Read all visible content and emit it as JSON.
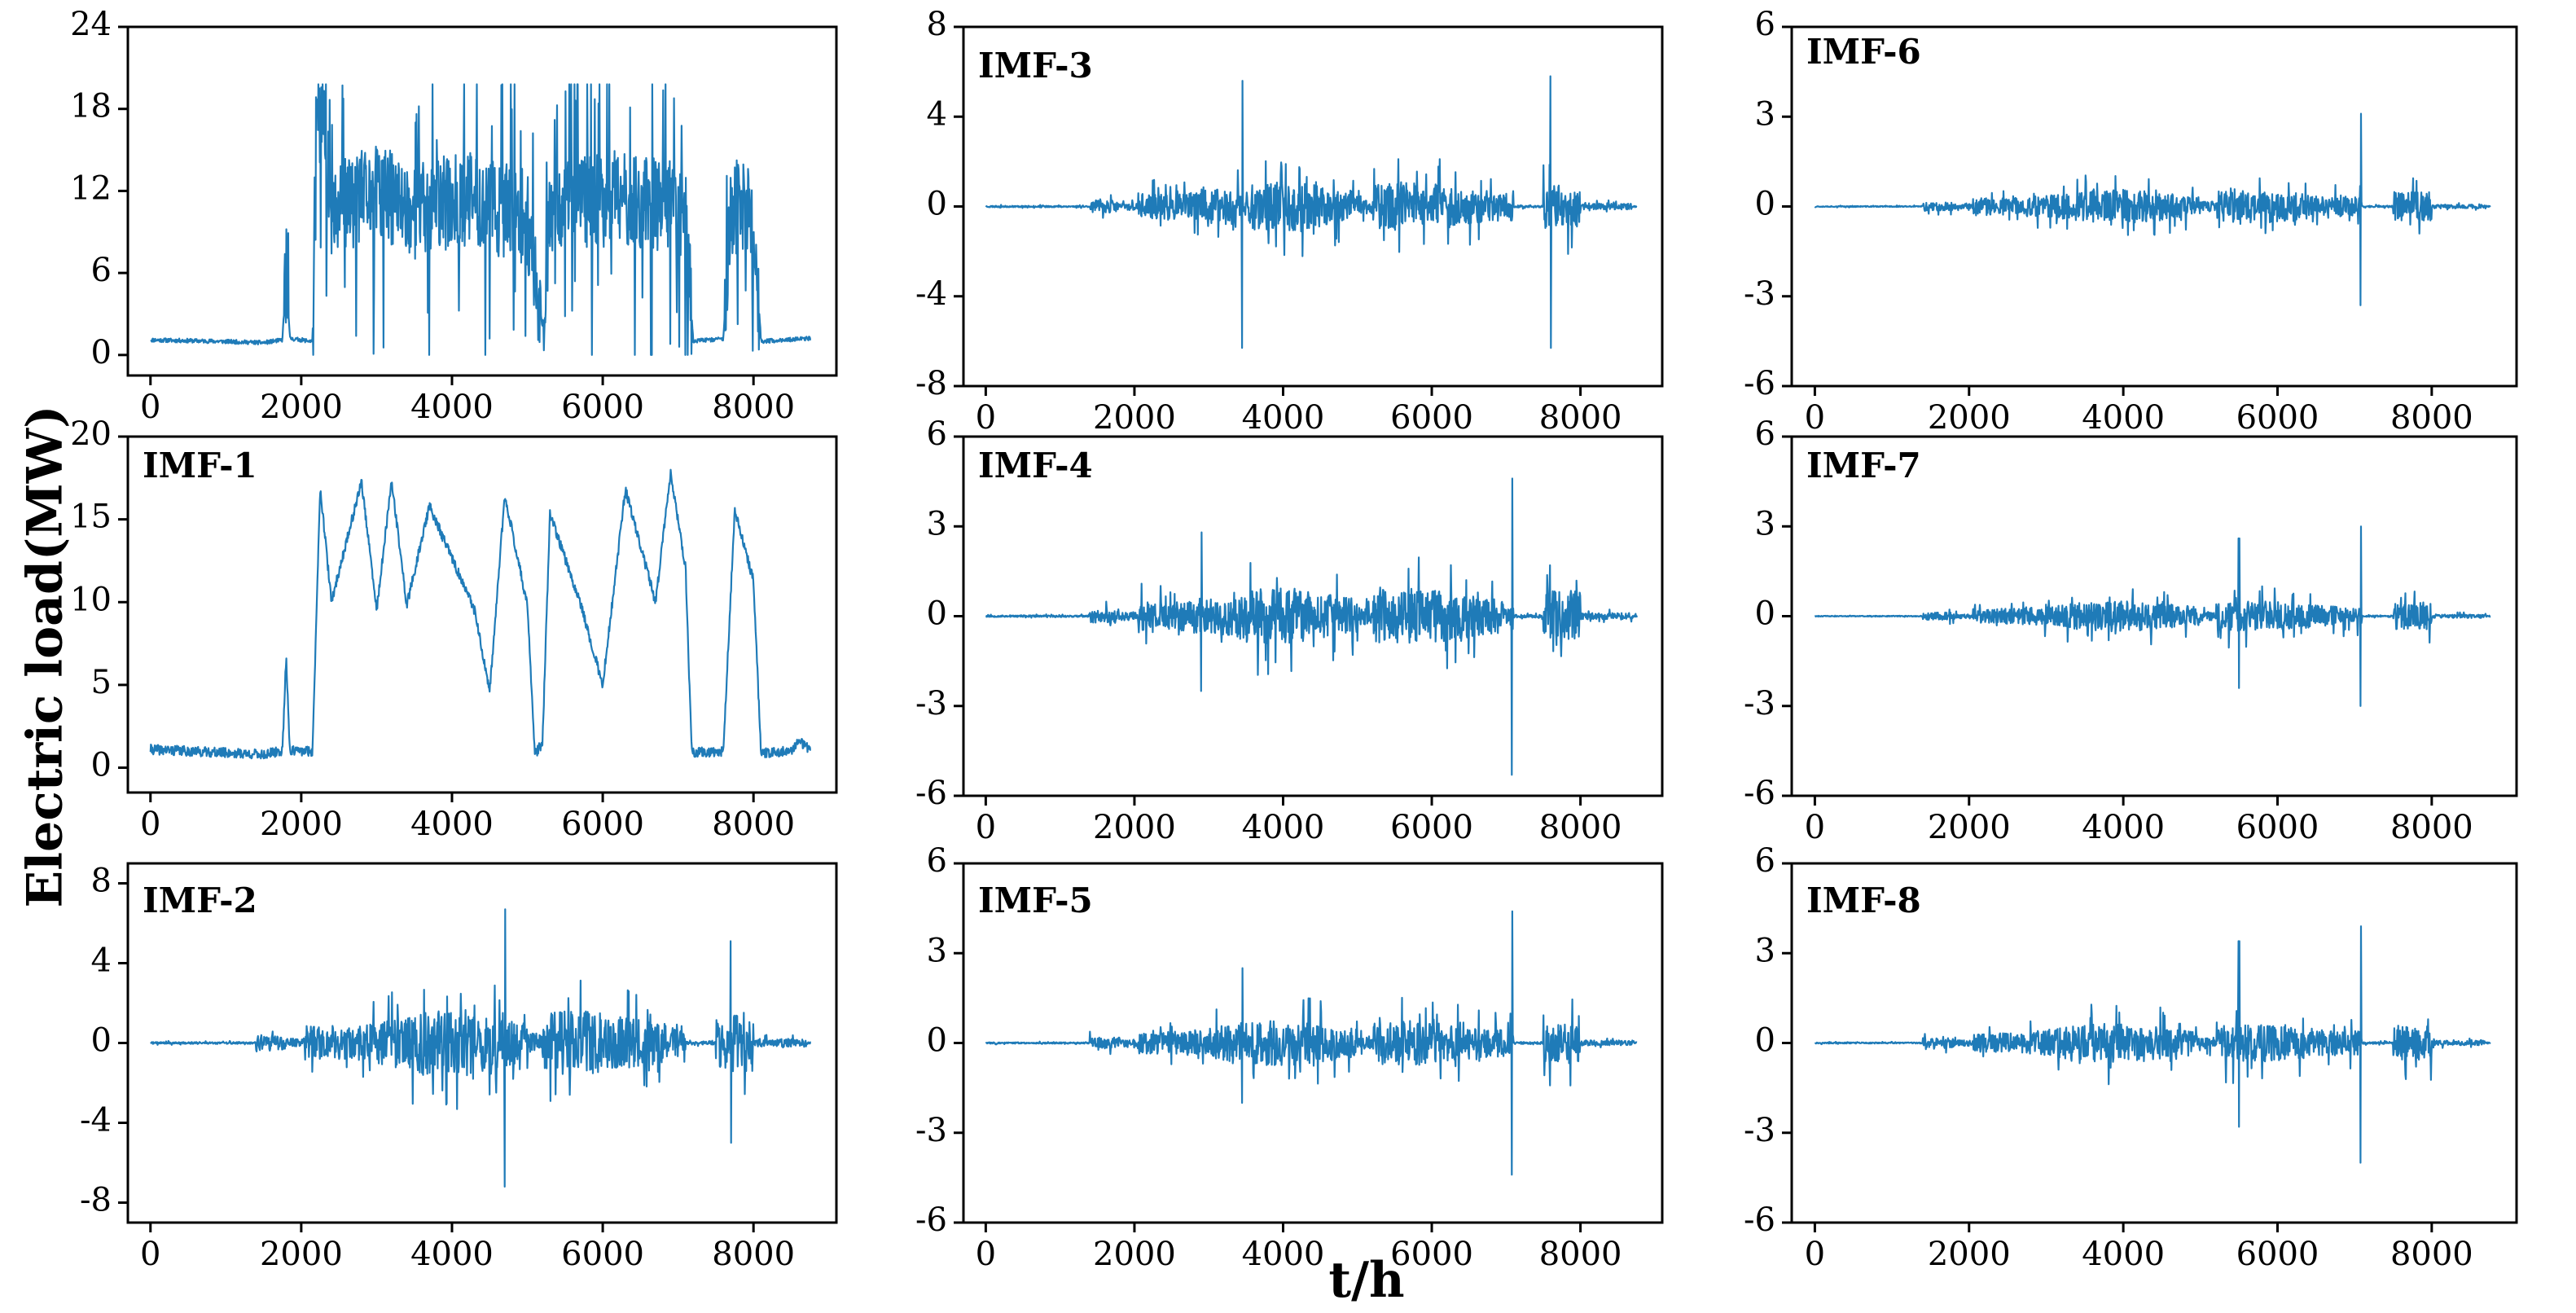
{
  "chart_data": {
    "type": "line",
    "ylabel": "Electric load(MW)",
    "xlabel": "t/h",
    "color": "#1f7bb8",
    "panels": [
      {
        "id": "original",
        "label": "",
        "ylim": [
          -1.5,
          24
        ],
        "yticks": [
          "0",
          "6",
          "12",
          "18",
          "24"
        ],
        "ytick_values": [
          0,
          6,
          12,
          18,
          24
        ],
        "xlim": [
          -300,
          9100
        ],
        "xticks": [
          "0",
          "2000",
          "4000",
          "6000",
          "8000"
        ],
        "xtick_values": [
          0,
          2000,
          4000,
          6000,
          8000
        ],
        "kind": "load",
        "seed": 11,
        "segments": [
          [
            0,
            1.1
          ],
          [
            900,
            1.0
          ],
          [
            1500,
            0.9
          ],
          [
            1750,
            1.1
          ],
          [
            1800,
            6.0
          ],
          [
            1850,
            1.2
          ],
          [
            2150,
            1.0
          ],
          [
            2200,
            18.0
          ],
          [
            2300,
            17.0
          ],
          [
            2400,
            10.0
          ],
          [
            2600,
            11.0
          ],
          [
            3000,
            12.0
          ],
          [
            3500,
            10.5
          ],
          [
            4200,
            11.5
          ],
          [
            5000,
            10.0
          ],
          [
            5200,
            2.0
          ],
          [
            5300,
            11.0
          ],
          [
            6200,
            11.5
          ],
          [
            7100,
            10.5
          ],
          [
            7200,
            1.0
          ],
          [
            7600,
            1.2
          ],
          [
            7700,
            11.0
          ],
          [
            8000,
            10.0
          ],
          [
            8100,
            1.0
          ],
          [
            8700,
            1.2
          ]
        ]
      },
      {
        "id": "imf3",
        "label": "IMF-3",
        "ylim": [
          -8,
          8
        ],
        "yticks": [
          "-8",
          "-4",
          "0",
          "4",
          "8"
        ],
        "ytick_values": [
          -8,
          -4,
          0,
          4,
          8
        ],
        "xlim": [
          -300,
          9100
        ],
        "xticks": [
          "0",
          "2000",
          "4000",
          "6000",
          "8000"
        ],
        "xtick_values": [
          0,
          2000,
          4000,
          6000,
          8000
        ],
        "kind": "imf",
        "seed": 23,
        "amp": 1.1,
        "peaks": [
          [
            3450,
            5.6,
            -6.3
          ],
          [
            7600,
            5.8,
            -6.3
          ]
        ]
      },
      {
        "id": "imf6",
        "label": "IMF-6",
        "ylim": [
          -6,
          6
        ],
        "yticks": [
          "-6",
          "-3",
          "0",
          "3",
          "6"
        ],
        "ytick_values": [
          -6,
          -3,
          0,
          3,
          6
        ],
        "xlim": [
          -300,
          9100
        ],
        "xticks": [
          "0",
          "2000",
          "4000",
          "6000",
          "8000"
        ],
        "xtick_values": [
          0,
          2000,
          4000,
          6000,
          8000
        ],
        "kind": "imf",
        "seed": 37,
        "amp": 0.55,
        "peaks": [
          [
            7080,
            3.1,
            -3.3
          ]
        ]
      },
      {
        "id": "imf1",
        "label": "IMF-1",
        "ylim": [
          -1.5,
          20
        ],
        "yticks": [
          "0",
          "5",
          "10",
          "15",
          "20"
        ],
        "ytick_values": [
          0,
          5,
          10,
          15,
          20
        ],
        "xlim": [
          -300,
          9100
        ],
        "xticks": [
          "0",
          "2000",
          "4000",
          "6000",
          "8000"
        ],
        "xtick_values": [
          0,
          2000,
          4000,
          6000,
          8000
        ],
        "kind": "smooth",
        "seed": 41,
        "segments": [
          [
            0,
            1.1
          ],
          [
            1500,
            0.8
          ],
          [
            1750,
            1.0
          ],
          [
            1800,
            6.7
          ],
          [
            1850,
            1.0
          ],
          [
            2150,
            1.0
          ],
          [
            2250,
            17.0
          ],
          [
            2400,
            10.0
          ],
          [
            2800,
            17.3
          ],
          [
            3000,
            9.5
          ],
          [
            3200,
            17.3
          ],
          [
            3400,
            9.8
          ],
          [
            3700,
            15.8
          ],
          [
            4300,
            9.5
          ],
          [
            4500,
            4.5
          ],
          [
            4700,
            16.5
          ],
          [
            5000,
            9.8
          ],
          [
            5100,
            0.8
          ],
          [
            5200,
            1.5
          ],
          [
            5300,
            15.3
          ],
          [
            5700,
            10.0
          ],
          [
            6000,
            5.0
          ],
          [
            6300,
            16.8
          ],
          [
            6700,
            10.0
          ],
          [
            6900,
            17.8
          ],
          [
            7100,
            12.0
          ],
          [
            7180,
            0.9
          ],
          [
            7600,
            1.0
          ],
          [
            7750,
            15.5
          ],
          [
            8000,
            11.3
          ],
          [
            8100,
            0.9
          ],
          [
            8500,
            1.0
          ],
          [
            8600,
            1.6
          ],
          [
            8750,
            1.1
          ]
        ]
      },
      {
        "id": "imf4",
        "label": "IMF-4",
        "ylim": [
          -6,
          6
        ],
        "yticks": [
          "-6",
          "-3",
          "0",
          "3",
          "6"
        ],
        "ytick_values": [
          -6,
          -3,
          0,
          3,
          6
        ],
        "xlim": [
          -300,
          9100
        ],
        "xticks": [
          "0",
          "2000",
          "4000",
          "6000",
          "8000"
        ],
        "xtick_values": [
          0,
          2000,
          4000,
          6000,
          8000
        ],
        "kind": "imf",
        "seed": 53,
        "amp": 0.95,
        "peaks": [
          [
            7080,
            4.6,
            -5.3
          ],
          [
            2900,
            2.8,
            -2.5
          ]
        ]
      },
      {
        "id": "imf7",
        "label": "IMF-7",
        "ylim": [
          -6,
          6
        ],
        "yticks": [
          "-6",
          "-3",
          "0",
          "3",
          "6"
        ],
        "ytick_values": [
          -6,
          -3,
          0,
          3,
          6
        ],
        "xlim": [
          -300,
          9100
        ],
        "xticks": [
          "0",
          "2000",
          "4000",
          "6000",
          "8000"
        ],
        "xtick_values": [
          0,
          2000,
          4000,
          6000,
          8000
        ],
        "kind": "imf",
        "seed": 61,
        "amp": 0.5,
        "peaks": [
          [
            7080,
            3.0,
            -3.0
          ],
          [
            5500,
            2.6,
            -2.4
          ]
        ]
      },
      {
        "id": "imf2",
        "label": "IMF-2",
        "ylim": [
          -9,
          9
        ],
        "yticks": [
          "-8",
          "-4",
          "0",
          "4",
          "8"
        ],
        "ytick_values": [
          -8,
          -4,
          0,
          4,
          8
        ],
        "xlim": [
          -300,
          9100
        ],
        "xticks": [
          "0",
          "2000",
          "4000",
          "6000",
          "8000"
        ],
        "xtick_values": [
          0,
          2000,
          4000,
          6000,
          8000
        ],
        "kind": "imf",
        "seed": 71,
        "amp": 1.6,
        "peaks": [
          [
            4700,
            6.7,
            -7.2
          ],
          [
            7700,
            5.1,
            -5.0
          ]
        ]
      },
      {
        "id": "imf5",
        "label": "IMF-5",
        "ylim": [
          -6,
          6
        ],
        "yticks": [
          "-6",
          "-3",
          "0",
          "3",
          "6"
        ],
        "ytick_values": [
          -6,
          -3,
          0,
          3,
          6
        ],
        "xlim": [
          -300,
          9100
        ],
        "xticks": [
          "0",
          "2000",
          "4000",
          "6000",
          "8000"
        ],
        "xtick_values": [
          0,
          2000,
          4000,
          6000,
          8000
        ],
        "kind": "imf",
        "seed": 83,
        "amp": 0.75,
        "peaks": [
          [
            7080,
            4.4,
            -4.4
          ],
          [
            3450,
            2.5,
            -2.0
          ]
        ]
      },
      {
        "id": "imf8",
        "label": "IMF-8",
        "ylim": [
          -6,
          6
        ],
        "yticks": [
          "-6",
          "-3",
          "0",
          "3",
          "6"
        ],
        "ytick_values": [
          -6,
          -3,
          0,
          3,
          6
        ],
        "xlim": [
          -300,
          9100
        ],
        "xticks": [
          "0",
          "2000",
          "4000",
          "6000",
          "8000"
        ],
        "xtick_values": [
          0,
          2000,
          4000,
          6000,
          8000
        ],
        "kind": "imf",
        "seed": 97,
        "amp": 0.65,
        "peaks": [
          [
            7080,
            3.9,
            -4.0
          ],
          [
            5500,
            3.4,
            -2.8
          ]
        ]
      }
    ]
  }
}
